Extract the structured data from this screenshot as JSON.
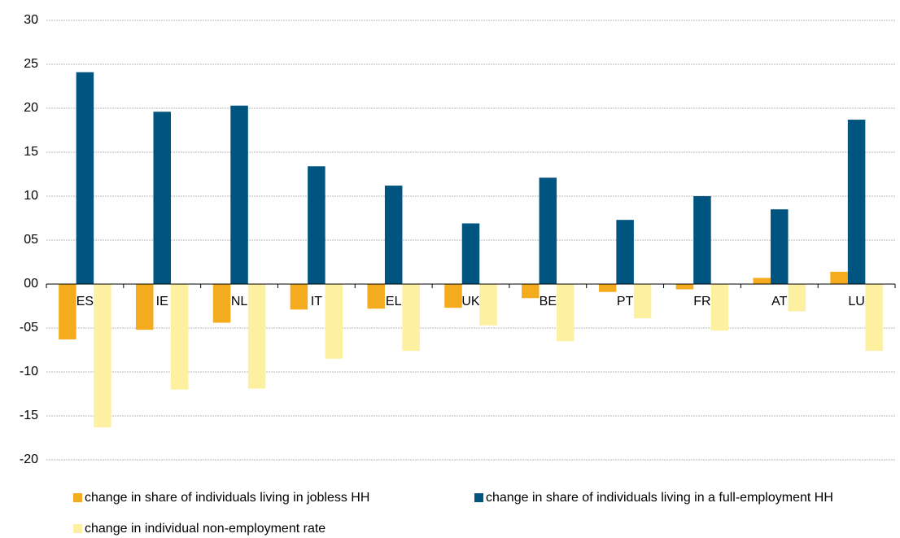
{
  "chart_data": {
    "type": "bar",
    "categories": [
      "ES",
      "IE",
      "NL",
      "IT",
      "EL",
      "UK",
      "BE",
      "PT",
      "FR",
      "AT",
      "LU"
    ],
    "series": [
      {
        "name": "change in share of individuals living in jobless HH",
        "color": "#f5ab1e",
        "values": [
          -6.3,
          -5.2,
          -4.4,
          -2.9,
          -2.8,
          -2.7,
          -1.6,
          -0.9,
          -0.6,
          0.7,
          1.4
        ]
      },
      {
        "name": "change in share of individuals living in a full-employment HH",
        "color": "#005580",
        "values": [
          24.1,
          19.6,
          20.3,
          13.4,
          11.2,
          6.9,
          12.1,
          7.3,
          10.0,
          8.5,
          18.7
        ]
      },
      {
        "name": "change in individual non-employment rate",
        "color": "#fdf0a0",
        "values": [
          -16.3,
          -12.0,
          -11.9,
          -8.5,
          -7.6,
          -4.7,
          -6.5,
          -3.9,
          -5.3,
          -3.1,
          -7.6
        ]
      }
    ],
    "ylim": [
      -20,
      30
    ],
    "yticks": [
      -20,
      -15,
      -10,
      {
        "value": -5,
        "label": "-05"
      },
      {
        "value": 0,
        "label": "00"
      },
      {
        "value": 5,
        "label": "05"
      },
      10,
      15,
      20,
      25,
      30
    ],
    "grid": true
  }
}
